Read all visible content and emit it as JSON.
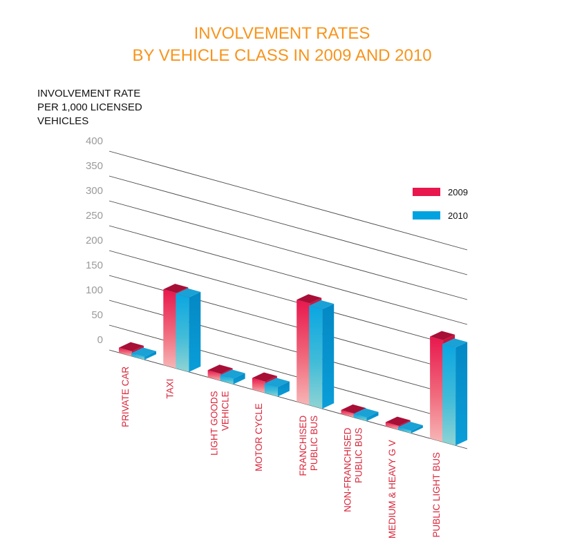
{
  "chart_data": {
    "type": "bar",
    "title_lines": [
      "INVOLVEMENT RATES",
      "BY VEHICLE CLASS IN 2009 AND 2010"
    ],
    "ylabel_lines": [
      "INVOLVEMENT RATE",
      "PER 1,000 LICENSED",
      "VEHICLES"
    ],
    "xlabel": "",
    "categories": [
      [
        "PRIVATE CAR"
      ],
      [
        "TAXI"
      ],
      [
        "LIGHT GOODS",
        "VEHICLE"
      ],
      [
        "MOTOR CYCLE"
      ],
      [
        "FRANCHISED",
        "PUBLIC BUS"
      ],
      [
        "NON-FRANCHISED",
        "PUBLIC BUS"
      ],
      [
        "MEDIUM & HEAVY G V"
      ],
      [
        "PUBLIC LIGHT BUS"
      ]
    ],
    "series": [
      {
        "name": "2009",
        "color": "#e8174d",
        "values": [
          10,
          152,
          14,
          23,
          205,
          8,
          8,
          205
        ]
      },
      {
        "name": "2010",
        "color": "#00a3e0",
        "values": [
          6,
          150,
          11,
          19,
          200,
          7,
          5,
          197
        ]
      }
    ],
    "yticks": [
      0,
      50,
      100,
      150,
      200,
      250,
      300,
      350,
      400
    ],
    "ylim": [
      0,
      400
    ],
    "grid": true,
    "legend_position": "top-right",
    "category_label_color": "#d8263a"
  }
}
